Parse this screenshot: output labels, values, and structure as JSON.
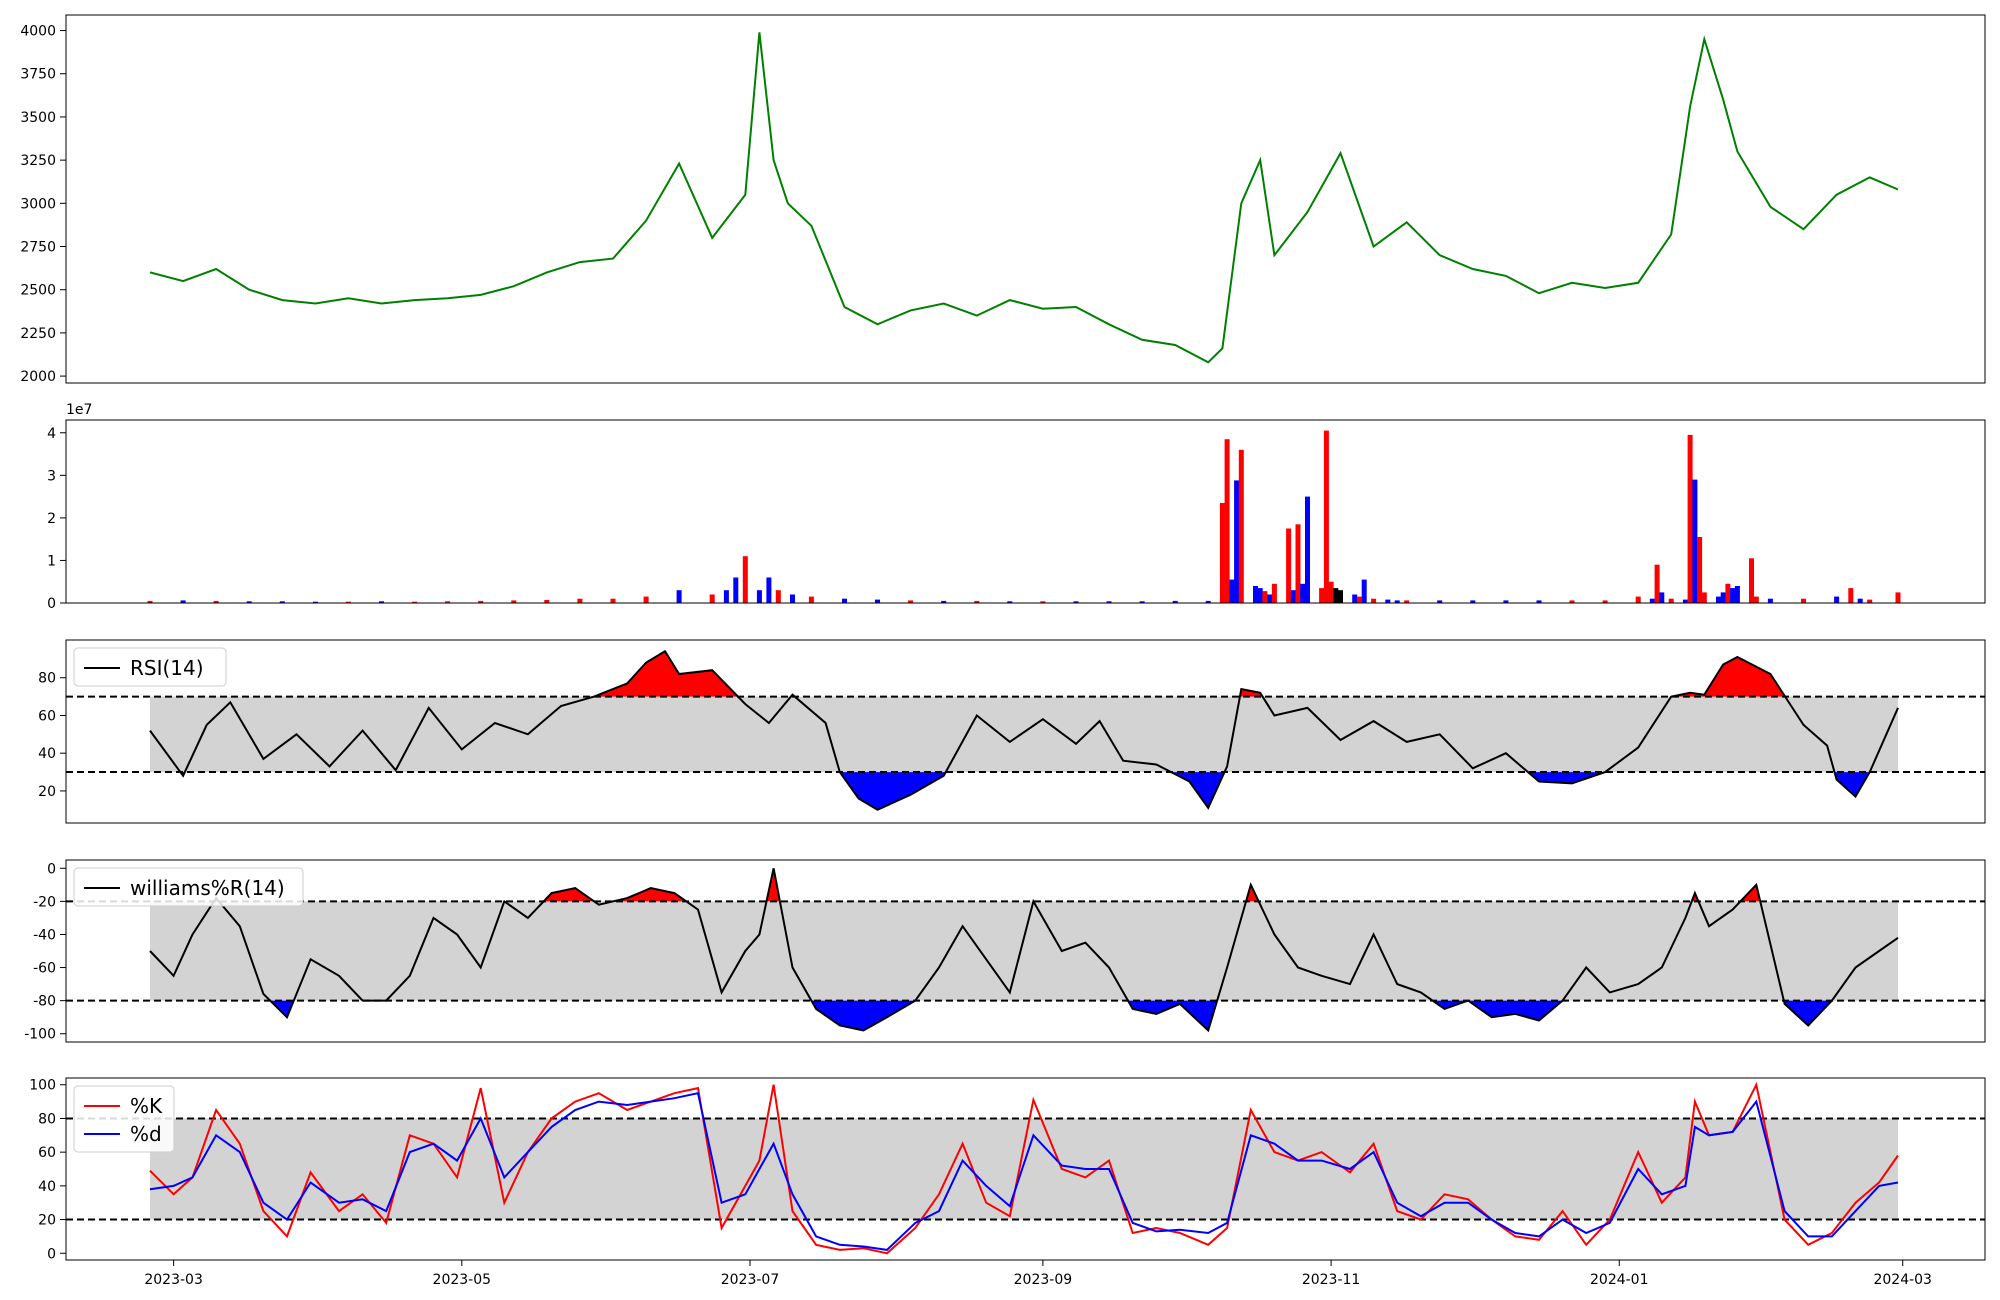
{
  "colors": {
    "price": "#008000",
    "vol_up": "#ff0000",
    "vol_down": "#0000ff",
    "vol_neutral": "#000000",
    "band": "#d3d3d3",
    "over": "#ff0000",
    "under": "#0000ff",
    "line": "#000000",
    "k": "#ff0000",
    "d": "#0000ff"
  },
  "chart_data": [
    {
      "id": "price",
      "type": "line",
      "title": "",
      "xlabel": "",
      "ylabel": "",
      "ylim": [
        1960,
        4090
      ],
      "yticks": [
        2000,
        2250,
        2500,
        2750,
        3000,
        3250,
        3500,
        3750,
        4000
      ],
      "xticks": [
        "2023-03",
        "2023-05",
        "2023-07",
        "2023-09",
        "2023-11",
        "2024-01",
        "2024-03"
      ],
      "grid": false,
      "x": [
        "2023-02-24",
        "2023-03-03",
        "2023-03-10",
        "2023-03-17",
        "2023-03-24",
        "2023-03-31",
        "2023-04-07",
        "2023-04-14",
        "2023-04-21",
        "2023-04-28",
        "2023-05-05",
        "2023-05-12",
        "2023-05-19",
        "2023-05-26",
        "2023-06-02",
        "2023-06-09",
        "2023-06-16",
        "2023-06-23",
        "2023-06-30",
        "2023-07-03",
        "2023-07-06",
        "2023-07-09",
        "2023-07-14",
        "2023-07-21",
        "2023-07-28",
        "2023-08-04",
        "2023-08-11",
        "2023-08-18",
        "2023-08-25",
        "2023-09-01",
        "2023-09-08",
        "2023-09-15",
        "2023-09-22",
        "2023-09-29",
        "2023-10-06",
        "2023-10-09",
        "2023-10-13",
        "2023-10-17",
        "2023-10-20",
        "2023-10-27",
        "2023-11-03",
        "2023-11-10",
        "2023-11-17",
        "2023-11-24",
        "2023-12-01",
        "2023-12-08",
        "2023-12-15",
        "2023-12-22",
        "2023-12-29",
        "2024-01-05",
        "2024-01-12",
        "2024-01-16",
        "2024-01-19",
        "2024-01-23",
        "2024-01-26",
        "2024-02-02",
        "2024-02-09",
        "2024-02-16",
        "2024-02-23",
        "2024-02-29"
      ],
      "values": [
        2600,
        2550,
        2620,
        2500,
        2440,
        2420,
        2450,
        2420,
        2440,
        2450,
        2470,
        2520,
        2600,
        2660,
        2680,
        2900,
        3230,
        2800,
        3050,
        3990,
        3250,
        3000,
        2870,
        2400,
        2300,
        2380,
        2420,
        2350,
        2440,
        2390,
        2400,
        2300,
        2210,
        2180,
        2080,
        2160,
        3000,
        3250,
        2700,
        2950,
        3290,
        2750,
        2890,
        2700,
        2620,
        2580,
        2480,
        2540,
        2510,
        2540,
        2820,
        3560,
        3950,
        3600,
        3300,
        2980,
        2850,
        3050,
        3150,
        3080
      ]
    },
    {
      "id": "volume",
      "type": "bar",
      "title": "",
      "ylim": [
        0,
        4.3
      ],
      "yticks": [
        0,
        1,
        2,
        3,
        4
      ],
      "yunit": "1e7",
      "x": [
        "2023-02-24",
        "2023-03-03",
        "2023-03-10",
        "2023-03-17",
        "2023-03-24",
        "2023-03-31",
        "2023-04-07",
        "2023-04-14",
        "2023-04-21",
        "2023-04-28",
        "2023-05-05",
        "2023-05-12",
        "2023-05-19",
        "2023-05-26",
        "2023-06-02",
        "2023-06-09",
        "2023-06-16",
        "2023-06-23",
        "2023-06-26",
        "2023-06-28",
        "2023-06-30",
        "2023-07-03",
        "2023-07-05",
        "2023-07-07",
        "2023-07-10",
        "2023-07-14",
        "2023-07-21",
        "2023-07-28",
        "2023-08-04",
        "2023-08-11",
        "2023-08-18",
        "2023-08-25",
        "2023-09-01",
        "2023-09-08",
        "2023-09-15",
        "2023-09-22",
        "2023-09-29",
        "2023-10-06",
        "2023-10-09",
        "2023-10-10",
        "2023-10-11",
        "2023-10-12",
        "2023-10-13",
        "2023-10-16",
        "2023-10-17",
        "2023-10-18",
        "2023-10-19",
        "2023-10-20",
        "2023-10-23",
        "2023-10-24",
        "2023-10-25",
        "2023-10-26",
        "2023-10-27",
        "2023-10-30",
        "2023-10-31",
        "2023-11-01",
        "2023-11-02",
        "2023-11-03",
        "2023-11-06",
        "2023-11-07",
        "2023-11-08",
        "2023-11-10",
        "2023-11-13",
        "2023-11-15",
        "2023-11-17",
        "2023-11-24",
        "2023-12-01",
        "2023-12-08",
        "2023-12-15",
        "2023-12-22",
        "2023-12-29",
        "2024-01-05",
        "2024-01-08",
        "2024-01-09",
        "2024-01-10",
        "2024-01-12",
        "2024-01-15",
        "2024-01-16",
        "2024-01-17",
        "2024-01-18",
        "2024-01-19",
        "2024-01-22",
        "2024-01-23",
        "2024-01-24",
        "2024-01-25",
        "2024-01-26",
        "2024-01-29",
        "2024-01-30",
        "2024-02-02",
        "2024-02-09",
        "2024-02-16",
        "2024-02-19",
        "2024-02-21",
        "2024-02-23",
        "2024-02-29"
      ],
      "values": [
        0.05,
        0.06,
        0.05,
        0.04,
        0.04,
        0.03,
        0.03,
        0.04,
        0.03,
        0.04,
        0.05,
        0.06,
        0.07,
        0.1,
        0.1,
        0.15,
        0.3,
        0.2,
        0.3,
        0.6,
        1.1,
        0.3,
        0.6,
        0.3,
        0.2,
        0.15,
        0.1,
        0.08,
        0.06,
        0.05,
        0.05,
        0.04,
        0.04,
        0.04,
        0.04,
        0.04,
        0.05,
        0.05,
        2.35,
        3.85,
        0.55,
        2.88,
        3.6,
        0.4,
        0.35,
        0.28,
        0.2,
        0.45,
        1.75,
        0.3,
        1.85,
        0.45,
        2.5,
        0.35,
        4.05,
        0.5,
        0.35,
        0.3,
        0.2,
        0.15,
        0.55,
        0.1,
        0.08,
        0.06,
        0.06,
        0.06,
        0.06,
        0.06,
        0.06,
        0.06,
        0.06,
        0.15,
        0.1,
        0.9,
        0.25,
        0.1,
        0.08,
        3.95,
        2.9,
        1.55,
        0.25,
        0.15,
        0.25,
        0.45,
        0.35,
        0.4,
        1.05,
        0.15,
        0.1,
        0.1,
        0.15,
        0.35,
        0.1,
        0.08,
        0.25
      ],
      "direction": [
        "u",
        "d",
        "u",
        "d",
        "d",
        "d",
        "u",
        "d",
        "u",
        "u",
        "u",
        "u",
        "u",
        "u",
        "u",
        "u",
        "d",
        "u",
        "d",
        "d",
        "u",
        "d",
        "d",
        "u",
        "d",
        "u",
        "d",
        "d",
        "u",
        "d",
        "u",
        "d",
        "u",
        "d",
        "d",
        "d",
        "d",
        "d",
        "u",
        "u",
        "d",
        "d",
        "u",
        "d",
        "d",
        "u",
        "d",
        "u",
        "u",
        "d",
        "u",
        "d",
        "d",
        "u",
        "u",
        "u",
        "n",
        "n",
        "d",
        "u",
        "d",
        "u",
        "d",
        "d",
        "u",
        "d",
        "d",
        "d",
        "d",
        "u",
        "u",
        "u",
        "d",
        "u",
        "d",
        "u",
        "d",
        "u",
        "d",
        "u",
        "u",
        "d",
        "d",
        "u",
        "d",
        "d",
        "u",
        "u",
        "d",
        "u",
        "d",
        "u",
        "d",
        "u",
        "u"
      ]
    },
    {
      "id": "rsi",
      "type": "line",
      "title": "",
      "ylim": [
        3,
        100
      ],
      "yticks": [
        20,
        40,
        60,
        80
      ],
      "thresholds": [
        30,
        70
      ],
      "legend": {
        "label": "RSI(14)",
        "loc": "upper-left"
      },
      "x": [
        "2023-02-24",
        "2023-03-03",
        "2023-03-08",
        "2023-03-13",
        "2023-03-20",
        "2023-03-27",
        "2023-04-03",
        "2023-04-10",
        "2023-04-17",
        "2023-04-24",
        "2023-05-01",
        "2023-05-08",
        "2023-05-15",
        "2023-05-22",
        "2023-05-29",
        "2023-06-05",
        "2023-06-09",
        "2023-06-13",
        "2023-06-16",
        "2023-06-23",
        "2023-06-30",
        "2023-07-05",
        "2023-07-10",
        "2023-07-17",
        "2023-07-20",
        "2023-07-24",
        "2023-07-28",
        "2023-08-04",
        "2023-08-11",
        "2023-08-18",
        "2023-08-25",
        "2023-09-01",
        "2023-09-08",
        "2023-09-13",
        "2023-09-18",
        "2023-09-25",
        "2023-10-02",
        "2023-10-06",
        "2023-10-10",
        "2023-10-13",
        "2023-10-17",
        "2023-10-20",
        "2023-10-27",
        "2023-11-03",
        "2023-11-10",
        "2023-11-17",
        "2023-11-24",
        "2023-12-01",
        "2023-12-08",
        "2023-12-15",
        "2023-12-22",
        "2023-12-29",
        "2024-01-05",
        "2024-01-12",
        "2024-01-16",
        "2024-01-19",
        "2024-01-23",
        "2024-01-26",
        "2024-02-02",
        "2024-02-09",
        "2024-02-14",
        "2024-02-16",
        "2024-02-20",
        "2024-02-23",
        "2024-02-29"
      ],
      "values": [
        52,
        28,
        55,
        67,
        37,
        50,
        33,
        52,
        31,
        64,
        42,
        56,
        50,
        65,
        70,
        77,
        88,
        94,
        82,
        84,
        66,
        56,
        71,
        56,
        30,
        16,
        10,
        18,
        28,
        60,
        46,
        58,
        45,
        57,
        36,
        34,
        25,
        11,
        33,
        74,
        72,
        60,
        64,
        47,
        57,
        46,
        50,
        32,
        40,
        25,
        24,
        30,
        43,
        70,
        72,
        71,
        87,
        91,
        82,
        55,
        44,
        26,
        17,
        30,
        64
      ]
    },
    {
      "id": "williams",
      "type": "line",
      "title": "",
      "ylim": [
        -105,
        5
      ],
      "yticks": [
        -100,
        -80,
        -60,
        -40,
        -20,
        0
      ],
      "thresholds": [
        -80,
        -20
      ],
      "legend": {
        "label": "williams%R(14)",
        "loc": "upper-left"
      },
      "x": [
        "2023-02-24",
        "2023-03-01",
        "2023-03-05",
        "2023-03-10",
        "2023-03-15",
        "2023-03-20",
        "2023-03-25",
        "2023-03-30",
        "2023-04-05",
        "2023-04-10",
        "2023-04-15",
        "2023-04-20",
        "2023-04-25",
        "2023-04-30",
        "2023-05-05",
        "2023-05-10",
        "2023-05-15",
        "2023-05-20",
        "2023-05-25",
        "2023-05-30",
        "2023-06-05",
        "2023-06-10",
        "2023-06-15",
        "2023-06-20",
        "2023-06-25",
        "2023-06-30",
        "2023-07-03",
        "2023-07-06",
        "2023-07-10",
        "2023-07-15",
        "2023-07-20",
        "2023-07-25",
        "2023-07-30",
        "2023-08-05",
        "2023-08-10",
        "2023-08-15",
        "2023-08-20",
        "2023-08-25",
        "2023-08-30",
        "2023-09-05",
        "2023-09-10",
        "2023-09-15",
        "2023-09-20",
        "2023-09-25",
        "2023-09-30",
        "2023-10-06",
        "2023-10-10",
        "2023-10-15",
        "2023-10-20",
        "2023-10-25",
        "2023-10-30",
        "2023-11-05",
        "2023-11-10",
        "2023-11-15",
        "2023-11-20",
        "2023-11-25",
        "2023-11-30",
        "2023-12-05",
        "2023-12-10",
        "2023-12-15",
        "2023-12-20",
        "2023-12-25",
        "2023-12-30",
        "2024-01-05",
        "2024-01-10",
        "2024-01-15",
        "2024-01-17",
        "2024-01-20",
        "2024-01-25",
        "2024-01-30",
        "2024-02-05",
        "2024-02-10",
        "2024-02-15",
        "2024-02-20",
        "2024-02-25",
        "2024-02-29"
      ],
      "values": [
        -50,
        -65,
        -40,
        -18,
        -35,
        -76,
        -90,
        -55,
        -65,
        -80,
        -80,
        -65,
        -30,
        -40,
        -60,
        -20,
        -30,
        -15,
        -12,
        -22,
        -18,
        -12,
        -15,
        -25,
        -75,
        -50,
        -40,
        0,
        -60,
        -85,
        -95,
        -98,
        -90,
        -80,
        -60,
        -35,
        -55,
        -75,
        -20,
        -50,
        -45,
        -60,
        -85,
        -88,
        -82,
        -98,
        -60,
        -10,
        -40,
        -60,
        -65,
        -70,
        -40,
        -70,
        -75,
        -85,
        -80,
        -90,
        -88,
        -92,
        -80,
        -60,
        -75,
        -70,
        -60,
        -30,
        -15,
        -35,
        -25,
        -10,
        -82,
        -95,
        -80,
        -60,
        -50,
        -42
      ]
    },
    {
      "id": "stoch",
      "type": "line",
      "title": "",
      "ylim": [
        -4,
        104
      ],
      "yticks": [
        0,
        20,
        40,
        60,
        80,
        100
      ],
      "thresholds": [
        20,
        80
      ],
      "legend": {
        "labels": [
          "%K",
          "%d"
        ],
        "loc": "upper-left"
      },
      "x": [
        "2023-02-24",
        "2023-03-01",
        "2023-03-05",
        "2023-03-10",
        "2023-03-15",
        "2023-03-20",
        "2023-03-25",
        "2023-03-30",
        "2023-04-05",
        "2023-04-10",
        "2023-04-15",
        "2023-04-20",
        "2023-04-25",
        "2023-04-30",
        "2023-05-05",
        "2023-05-10",
        "2023-05-15",
        "2023-05-20",
        "2023-05-25",
        "2023-05-30",
        "2023-06-05",
        "2023-06-10",
        "2023-06-15",
        "2023-06-20",
        "2023-06-25",
        "2023-06-30",
        "2023-07-03",
        "2023-07-06",
        "2023-07-10",
        "2023-07-15",
        "2023-07-20",
        "2023-07-25",
        "2023-07-30",
        "2023-08-05",
        "2023-08-10",
        "2023-08-15",
        "2023-08-20",
        "2023-08-25",
        "2023-08-30",
        "2023-09-05",
        "2023-09-10",
        "2023-09-15",
        "2023-09-20",
        "2023-09-25",
        "2023-09-30",
        "2023-10-06",
        "2023-10-10",
        "2023-10-15",
        "2023-10-20",
        "2023-10-25",
        "2023-10-30",
        "2023-11-05",
        "2023-11-10",
        "2023-11-15",
        "2023-11-20",
        "2023-11-25",
        "2023-11-30",
        "2023-12-05",
        "2023-12-10",
        "2023-12-15",
        "2023-12-20",
        "2023-12-25",
        "2023-12-30",
        "2024-01-05",
        "2024-01-10",
        "2024-01-15",
        "2024-01-17",
        "2024-01-20",
        "2024-01-25",
        "2024-01-30",
        "2024-02-05",
        "2024-02-10",
        "2024-02-15",
        "2024-02-20",
        "2024-02-25",
        "2024-02-29"
      ],
      "series": [
        {
          "name": "%K",
          "values": [
            49,
            35,
            45,
            85,
            65,
            25,
            10,
            48,
            25,
            35,
            18,
            70,
            65,
            45,
            98,
            30,
            60,
            80,
            90,
            95,
            85,
            90,
            95,
            98,
            15,
            40,
            55,
            100,
            25,
            5,
            2,
            3,
            0,
            15,
            35,
            65,
            30,
            22,
            91,
            50,
            45,
            55,
            12,
            15,
            12,
            5,
            15,
            85,
            60,
            55,
            60,
            48,
            65,
            25,
            20,
            35,
            32,
            20,
            10,
            8,
            25,
            5,
            20,
            60,
            30,
            45,
            90,
            70,
            72,
            100,
            20,
            5,
            12,
            30,
            42,
            58
          ]
        },
        {
          "name": "%d",
          "values": [
            38,
            40,
            45,
            70,
            60,
            30,
            20,
            42,
            30,
            32,
            25,
            60,
            65,
            55,
            80,
            45,
            60,
            75,
            85,
            90,
            88,
            90,
            92,
            95,
            30,
            35,
            50,
            65,
            35,
            10,
            5,
            4,
            2,
            18,
            25,
            55,
            40,
            28,
            70,
            52,
            50,
            50,
            18,
            13,
            14,
            12,
            18,
            70,
            65,
            55,
            55,
            50,
            60,
            30,
            22,
            30,
            30,
            20,
            12,
            10,
            20,
            12,
            18,
            50,
            35,
            40,
            75,
            70,
            72,
            90,
            25,
            10,
            10,
            25,
            40,
            42
          ]
        }
      ]
    }
  ]
}
